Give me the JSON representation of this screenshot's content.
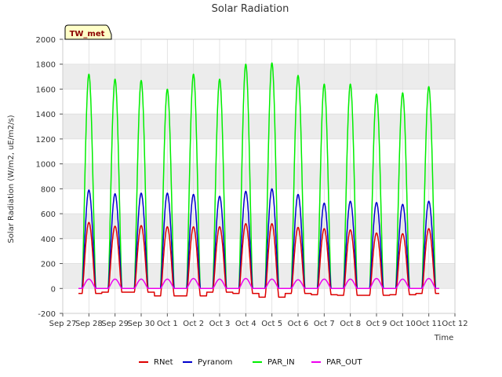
{
  "chart_data": {
    "type": "line",
    "title": "Solar Radiation",
    "xlabel": "Time",
    "ylabel": "Solar Radiation (W/m2, uE/m2/s)",
    "badge": "TW_met",
    "ylim": [
      -200,
      2000
    ],
    "yticks": [
      -200,
      0,
      200,
      400,
      600,
      800,
      1000,
      1200,
      1400,
      1600,
      1800,
      2000
    ],
    "xlim": [
      0,
      15
    ],
    "xticks": [
      {
        "pos": 0,
        "label": "Sep 27"
      },
      {
        "pos": 1,
        "label": "Sep 28"
      },
      {
        "pos": 2,
        "label": "Sep 29"
      },
      {
        "pos": 3,
        "label": "Sep 30"
      },
      {
        "pos": 4,
        "label": "Oct 1"
      },
      {
        "pos": 5,
        "label": "Oct 2"
      },
      {
        "pos": 6,
        "label": "Oct 3"
      },
      {
        "pos": 7,
        "label": "Oct 4"
      },
      {
        "pos": 8,
        "label": "Oct 5"
      },
      {
        "pos": 9,
        "label": "Oct 6"
      },
      {
        "pos": 10,
        "label": "Oct 7"
      },
      {
        "pos": 11,
        "label": "Oct 8"
      },
      {
        "pos": 12,
        "label": "Oct 9"
      },
      {
        "pos": 13,
        "label": "Oct 10"
      },
      {
        "pos": 14,
        "label": "Oct 11"
      },
      {
        "pos": 15,
        "label": "Oct 12"
      }
    ],
    "grid": true,
    "background_bands": "alternating light grey",
    "legend_position": "bottom",
    "days": [
      1,
      2,
      3,
      4,
      5,
      6,
      7,
      8,
      9,
      10,
      11,
      12,
      13,
      14
    ],
    "series": [
      {
        "name": "RNet",
        "color": "#dd0000",
        "peaks": [
          530,
          500,
          505,
          495,
          495,
          495,
          520,
          520,
          490,
          480,
          470,
          445,
          440,
          480
        ],
        "night": [
          -40,
          -30,
          -30,
          -60,
          -60,
          -30,
          -40,
          -70,
          -40,
          -50,
          -55,
          -55,
          -50,
          -40
        ]
      },
      {
        "name": "Pyranom",
        "color": "#0000cc",
        "peaks": [
          790,
          760,
          765,
          765,
          755,
          740,
          780,
          800,
          755,
          685,
          700,
          690,
          675,
          700
        ],
        "night": [
          0,
          0,
          0,
          0,
          0,
          0,
          0,
          0,
          0,
          0,
          0,
          0,
          0,
          0
        ]
      },
      {
        "name": "PAR_IN",
        "color": "#00ee00",
        "peaks": [
          1720,
          1680,
          1670,
          1600,
          1720,
          1680,
          1800,
          1810,
          1710,
          1640,
          1640,
          1560,
          1570,
          1620
        ],
        "night": [
          0,
          0,
          0,
          0,
          0,
          0,
          0,
          0,
          0,
          0,
          0,
          0,
          0,
          0
        ]
      },
      {
        "name": "PAR_OUT",
        "color": "#ee00ee",
        "peaks": [
          75,
          75,
          75,
          75,
          80,
          75,
          80,
          75,
          70,
          75,
          75,
          80,
          75,
          80
        ],
        "night": [
          0,
          0,
          0,
          0,
          0,
          0,
          0,
          0,
          0,
          0,
          0,
          0,
          0,
          0
        ]
      }
    ]
  }
}
